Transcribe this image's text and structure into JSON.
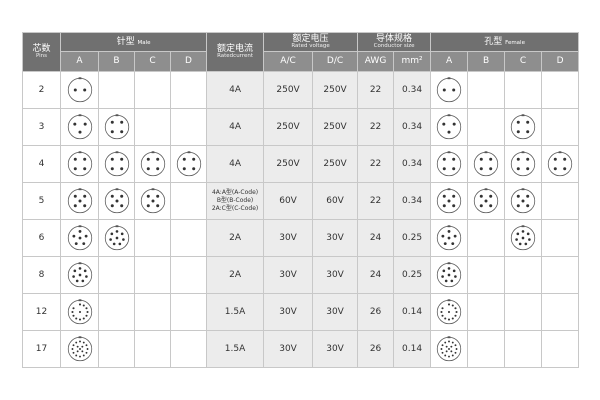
{
  "header": {
    "pins": "芯数",
    "pins_en": "Pins",
    "male": "针型",
    "male_en": "Male",
    "current": "额定电流",
    "current_en": "Ratedcurrent",
    "voltage": "额定电压",
    "voltage_en": "Rated voltage",
    "conductor": "导体规格",
    "conductor_en": "Conductor size",
    "female": "孔型",
    "female_en": "Female",
    "sub": [
      "A",
      "B",
      "C",
      "D",
      "A/C",
      "D/C",
      "AWG",
      "mm²",
      "A",
      "B",
      "C",
      "D"
    ]
  },
  "rows": [
    {
      "pins": "2",
      "current": [
        "4A"
      ],
      "ac": "250V",
      "dc": "250V",
      "awg": "22",
      "mm2": "0.34"
    },
    {
      "pins": "3",
      "current": [
        "4A"
      ],
      "ac": "250V",
      "dc": "250V",
      "awg": "22",
      "mm2": "0.34"
    },
    {
      "pins": "4",
      "current": [
        "4A"
      ],
      "ac": "250V",
      "dc": "250V",
      "awg": "22",
      "mm2": "0.34"
    },
    {
      "pins": "5",
      "current": [
        "4A:A型(A-Code)",
        "B型(B-Code)",
        "2A:C型(C-Code)"
      ],
      "ac": "60V",
      "dc": "60V",
      "awg": "22",
      "mm2": "0.34"
    },
    {
      "pins": "6",
      "current": [
        "2A"
      ],
      "ac": "30V",
      "dc": "30V",
      "awg": "24",
      "mm2": "0.25"
    },
    {
      "pins": "8",
      "current": [
        "2A"
      ],
      "ac": "30V",
      "dc": "30V",
      "awg": "24",
      "mm2": "0.25"
    },
    {
      "pins": "12",
      "current": [
        "1.5A"
      ],
      "ac": "30V",
      "dc": "30V",
      "awg": "26",
      "mm2": "0.14"
    },
    {
      "pins": "17",
      "current": [
        "1.5A"
      ],
      "ac": "30V",
      "dc": "30V",
      "awg": "26",
      "mm2": "0.14"
    }
  ]
}
